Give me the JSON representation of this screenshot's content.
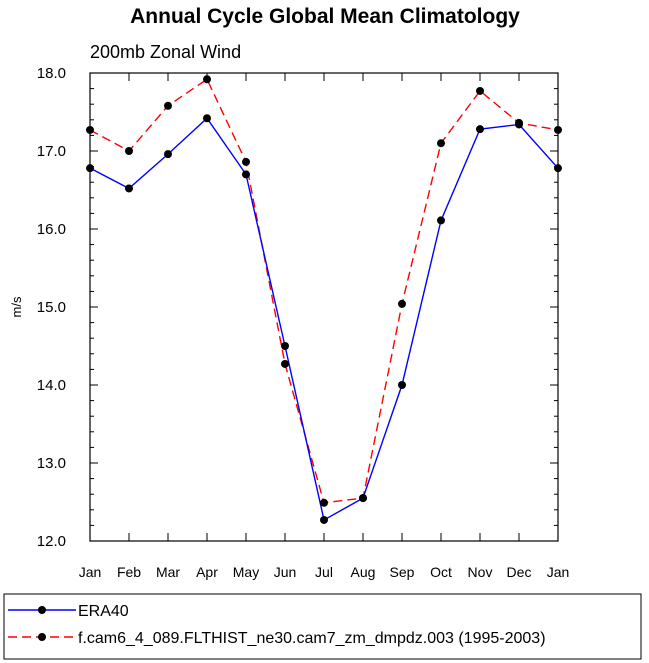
{
  "chart_data": {
    "type": "line",
    "title": "Annual Cycle Global Mean Climatology",
    "subtitle": "200mb Zonal Wind",
    "xlabel": "",
    "ylabel": "m/s",
    "categories": [
      "Jan",
      "Feb",
      "Mar",
      "Apr",
      "May",
      "Jun",
      "Jul",
      "Aug",
      "Sep",
      "Oct",
      "Nov",
      "Dec",
      "Jan"
    ],
    "ylim": [
      12.0,
      18.0
    ],
    "yticks": [
      "12.0",
      "13.0",
      "14.0",
      "15.0",
      "16.0",
      "17.0",
      "18.0"
    ],
    "series": [
      {
        "name": "ERA40",
        "color": "#0000ff",
        "dash": "solid",
        "marker": "circle",
        "values": [
          16.78,
          16.52,
          16.96,
          17.42,
          16.7,
          14.5,
          12.27,
          12.55,
          14.0,
          16.11,
          17.28,
          17.34,
          16.78
        ]
      },
      {
        "name": "f.cam6_4_089.FLTHIST_ne30.cam7_zm_dmpdz.003 (1995-2003)",
        "color": "#ff0000",
        "dash": "dashed",
        "marker": "circle",
        "values": [
          17.27,
          17.0,
          17.58,
          17.92,
          16.86,
          14.27,
          12.49,
          12.55,
          15.04,
          17.1,
          17.77,
          17.36,
          17.27
        ]
      }
    ],
    "legend_position": "bottom"
  }
}
